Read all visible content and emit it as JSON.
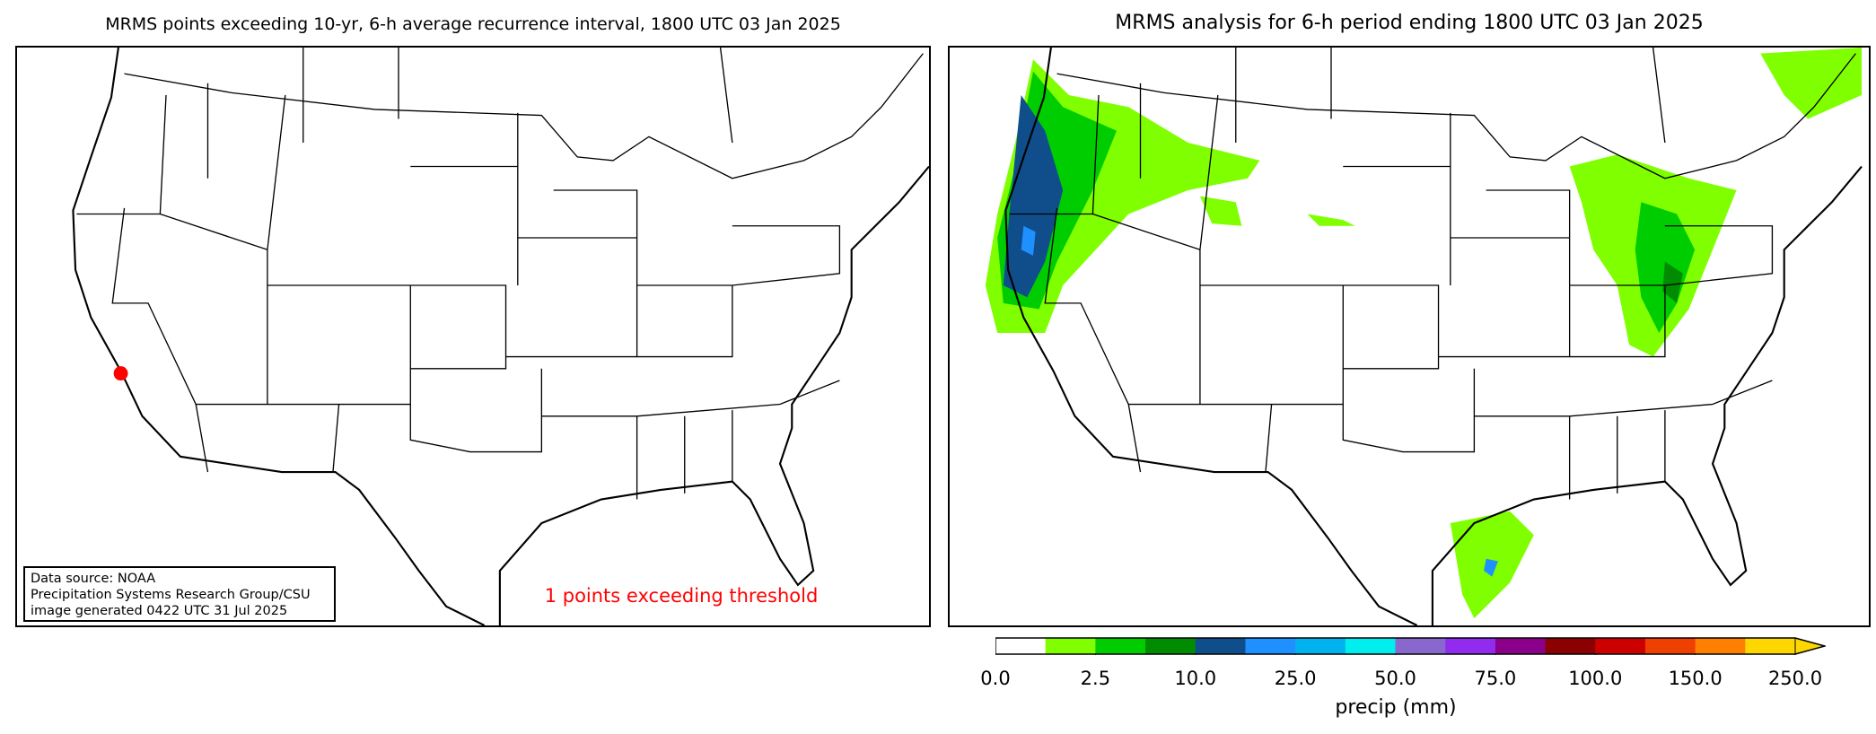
{
  "left_panel": {
    "title": "MRMS points exceeding 10-yr, 6-h average recurrence interval, 1800 UTC 03 Jan 2025",
    "info_lines": [
      "Data source: NOAA",
      "Precipitation Systems Research Group/CSU",
      "image generated 0422 UTC 31 Jul 2025"
    ],
    "points_text": "1 points exceeding threshold",
    "points_color": "#ff0000",
    "point_marker_color": "#ff0000"
  },
  "right_panel": {
    "title": "MRMS analysis for 6-h period ending 1800 UTC 03 Jan 2025",
    "colorbar": {
      "label": "precip (mm)",
      "tick_labels": [
        "0.0",
        "2.5",
        "10.0",
        "25.0",
        "50.0",
        "75.0",
        "100.0",
        "150.0",
        "250.0"
      ],
      "colors": [
        "#ffffff",
        "#7fff00",
        "#00cd00",
        "#008b00",
        "#104e8b",
        "#1e90ff",
        "#00b2ee",
        "#00eeee",
        "#8968cd",
        "#912cee",
        "#8b008b",
        "#8b0000",
        "#cd0000",
        "#ee4000",
        "#ff7f00",
        "#ffd700"
      ],
      "extend": "max"
    }
  }
}
